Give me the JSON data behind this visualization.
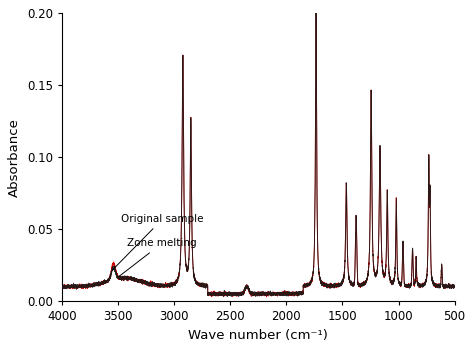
{
  "title": "",
  "xlabel": "Wave number (cm⁻¹)",
  "ylabel": "Absorbance",
  "xlim": [
    4000,
    500
  ],
  "ylim": [
    0.0,
    0.2
  ],
  "yticks": [
    0.0,
    0.05,
    0.1,
    0.15,
    0.2
  ],
  "xticks": [
    4000,
    3500,
    3000,
    2500,
    2000,
    1500,
    1000,
    500
  ],
  "color_original": "#1a1a1a",
  "color_zone": "#cc0000",
  "label_original": "Original sample",
  "label_zone": "Zone melting",
  "background_color": "#ffffff"
}
